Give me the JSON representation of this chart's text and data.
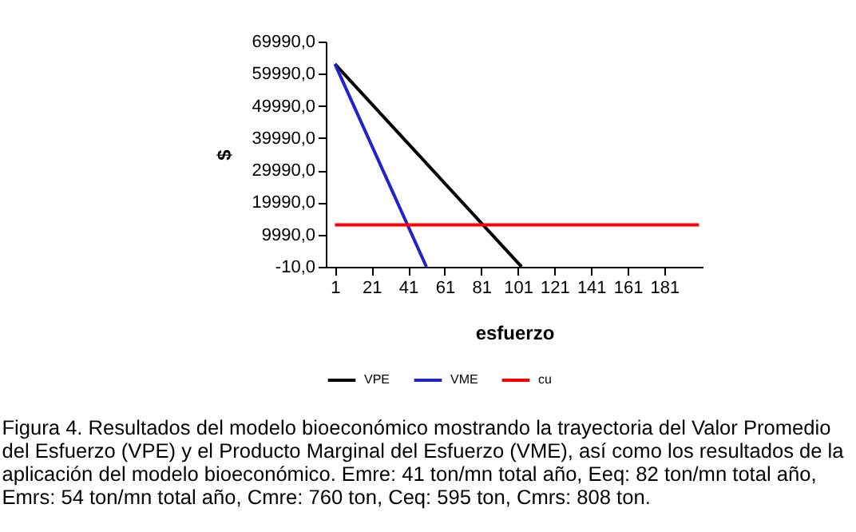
{
  "chart_data": {
    "type": "line",
    "xlabel": "esfuerzo",
    "ylabel": "$",
    "xlim": [
      -4,
      202
    ],
    "xticks": [
      1,
      21,
      41,
      61,
      81,
      101,
      121,
      141,
      161,
      181
    ],
    "ylim": [
      -10,
      69990
    ],
    "yticks": [
      {
        "value": -10,
        "label": "-10,0"
      },
      {
        "value": 9990,
        "label": "9990,0"
      },
      {
        "value": 19990,
        "label": "19990,0"
      },
      {
        "value": 29990,
        "label": "29990,0"
      },
      {
        "value": 39990,
        "label": "39990,0"
      },
      {
        "value": 49990,
        "label": "49990,0"
      },
      {
        "value": 59990,
        "label": "59990,0"
      },
      {
        "value": 69990,
        "label": "69990,0"
      }
    ],
    "series": [
      {
        "name": "VPE",
        "color": "#000000",
        "x": [
          1,
          103
        ],
        "values": [
          63000,
          0
        ]
      },
      {
        "name": "VME",
        "color": "#2222cc",
        "x": [
          1,
          51
        ],
        "values": [
          63000,
          0
        ]
      },
      {
        "name": "cu",
        "color": "#ff0000",
        "x": [
          1,
          200
        ],
        "values": [
          13000,
          13000
        ]
      }
    ],
    "grid": false,
    "legend": "bottom",
    "marker": "none",
    "line_style": "solid",
    "annotations": [
      "Figura 4. Resultados del modelo bioeconómico mostrando la trayectoria del Valor Promedio del Esfuerzo (VPE) y el Producto Marginal del Esfuerzo (VME), así como los resultados de la aplicación del modelo bioeconómico. Emre: 41 ton/mn total año, Eeq: 82 ton/mn total año, Emrs: 54 ton/mn total año, Cmre: 760 ton, Ceq: 595 ton, Cmrs: 808 ton."
    ]
  }
}
